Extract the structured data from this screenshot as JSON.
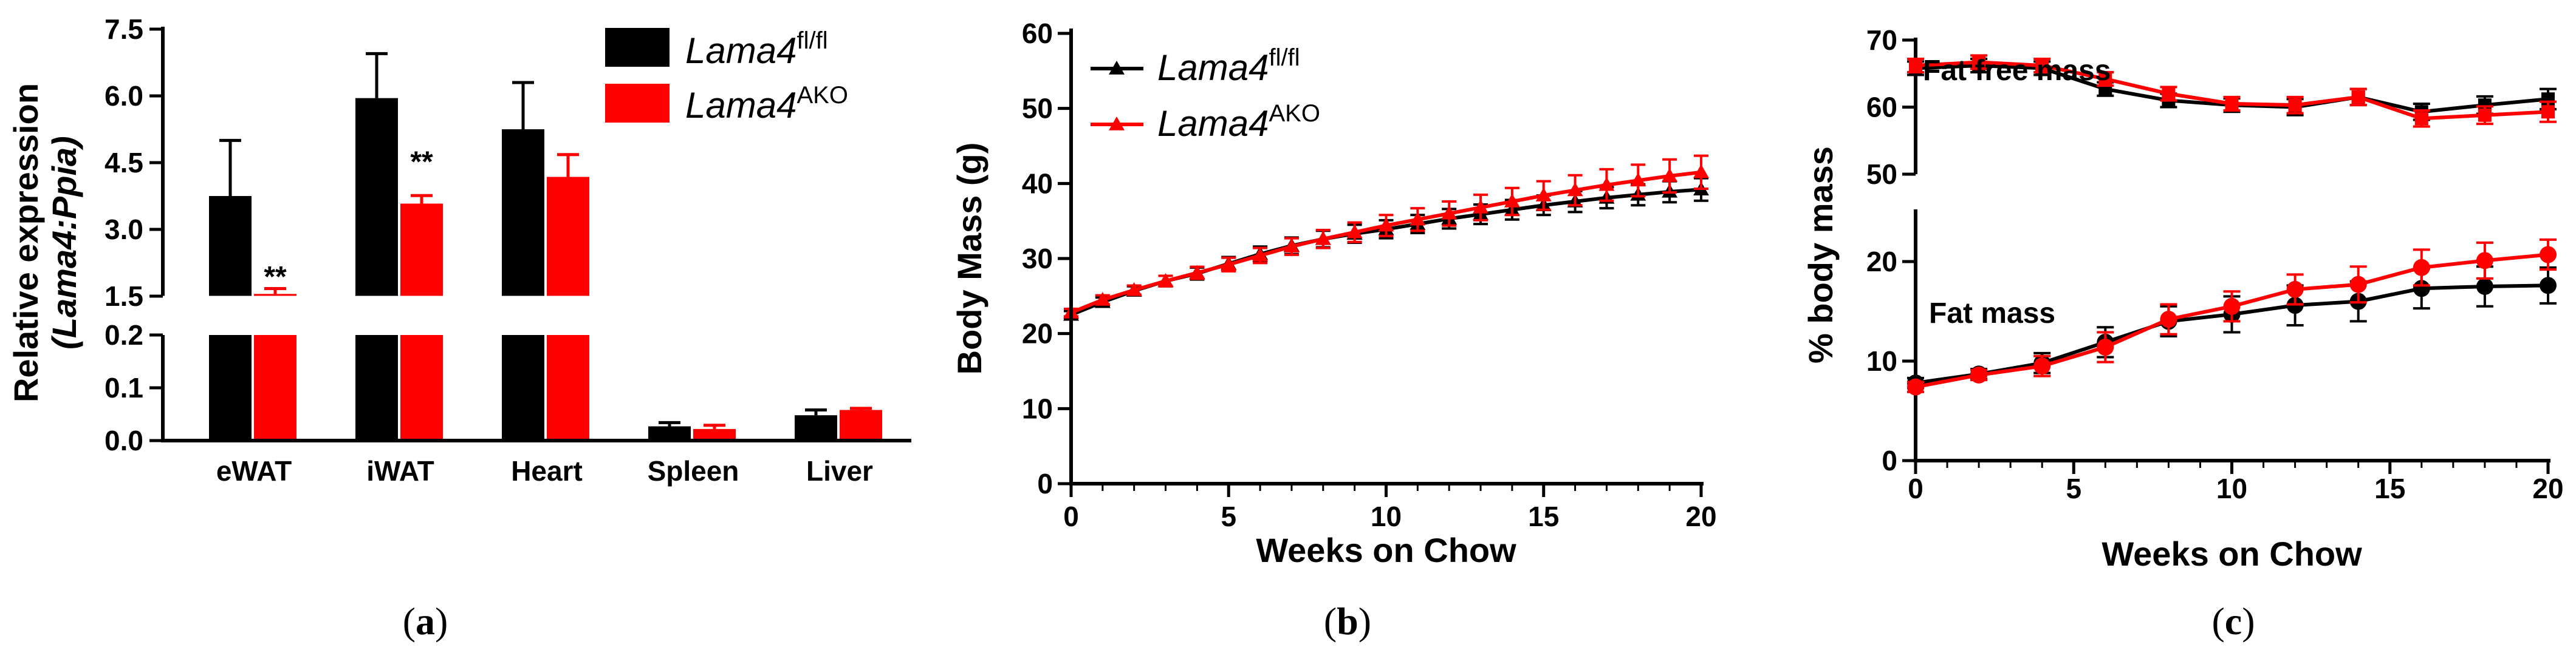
{
  "colors": {
    "black": "#000000",
    "red": "#ff0000"
  },
  "legend": {
    "ctrl": {
      "base": "Lama4",
      "sup": "fl/fl"
    },
    "ako": {
      "base": "Lama4",
      "sup": "AKO"
    }
  },
  "chart_data": [
    {
      "type": "bar",
      "panel_label": "a",
      "caption": {
        "open": "(",
        "label": "a",
        "close": ")"
      },
      "ylabel_line1": "Relative expression",
      "ylabel_line2": "(Lama4:Ppia)",
      "broken_axis": true,
      "y_segments": [
        {
          "ylim": [
            1.5,
            7.5
          ],
          "ticks": [
            "1.5",
            "3.0",
            "4.5",
            "6.0",
            "7.5"
          ]
        },
        {
          "ylim": [
            0,
            0.2
          ],
          "ticks": [
            "0.0",
            "0.1",
            "0.2"
          ]
        }
      ],
      "categories": [
        "eWAT",
        "iWAT",
        "Heart",
        "Spleen",
        "Liver"
      ],
      "series": [
        {
          "name": "Lama4 fl/fl",
          "color": "#000000",
          "values": [
            3.75,
            5.95,
            5.25,
            0.027,
            0.048
          ],
          "errors": [
            1.25,
            1.0,
            1.05,
            0.007,
            0.01
          ]
        },
        {
          "name": "Lama4 AKO",
          "color": "#ff0000",
          "values": [
            1.55,
            3.58,
            4.18,
            0.022,
            0.058
          ],
          "errors": [
            0.12,
            0.18,
            0.5,
            0.007,
            0.003
          ]
        }
      ],
      "annotations": [
        {
          "category": "eWAT",
          "text": "**"
        },
        {
          "category": "iWAT",
          "text": "**"
        }
      ]
    },
    {
      "type": "line",
      "panel_label": "b",
      "caption": {
        "open": "(",
        "label": "b",
        "close": ")"
      },
      "title": "",
      "xlabel": "Weeks on Chow",
      "ylabel": "Body Mass (g)",
      "xlim": [
        0,
        20
      ],
      "ylim": [
        0,
        60
      ],
      "xticks": [
        "0",
        "5",
        "10",
        "15",
        "20"
      ],
      "yticks": [
        "0",
        "10",
        "20",
        "30",
        "40",
        "50",
        "60"
      ],
      "x": [
        0,
        1,
        2,
        3,
        4,
        5,
        6,
        7,
        8,
        9,
        10,
        11,
        12,
        13,
        14,
        15,
        16,
        17,
        18,
        19,
        20
      ],
      "series": [
        {
          "name": "Lama4 fl/fl",
          "color": "#000000",
          "marker": "triangle",
          "values": [
            22.5,
            24.2,
            25.7,
            27.0,
            28.0,
            29.3,
            30.6,
            31.7,
            32.6,
            33.3,
            33.9,
            34.6,
            35.3,
            35.9,
            36.5,
            37.1,
            37.6,
            38.1,
            38.5,
            38.9,
            39.2
          ],
          "errors": [
            0.5,
            0.6,
            0.6,
            0.7,
            0.8,
            0.9,
            1.0,
            1.1,
            1.1,
            1.2,
            1.2,
            1.2,
            1.3,
            1.3,
            1.3,
            1.3,
            1.4,
            1.4,
            1.4,
            1.4,
            1.5
          ]
        },
        {
          "name": "Lama4 AKO",
          "color": "#ff0000",
          "marker": "triangle",
          "values": [
            22.8,
            24.5,
            25.8,
            27.0,
            28.1,
            29.2,
            30.4,
            31.6,
            32.6,
            33.5,
            34.4,
            35.2,
            36.0,
            36.8,
            37.6,
            38.4,
            39.1,
            39.8,
            40.4,
            41.0,
            41.5
          ],
          "errors": [
            0.5,
            0.6,
            0.6,
            0.7,
            0.8,
            0.9,
            1.0,
            1.1,
            1.2,
            1.3,
            1.4,
            1.5,
            1.6,
            1.7,
            1.8,
            1.9,
            2.0,
            2.1,
            2.1,
            2.2,
            2.2
          ]
        }
      ]
    },
    {
      "type": "line",
      "panel_label": "c",
      "caption": {
        "open": "(",
        "label": "c",
        "close": ")"
      },
      "xlabel": "Weeks on Chow",
      "ylabel": "% body mass",
      "xlim": [
        0,
        20
      ],
      "xticks": [
        "0",
        "5",
        "10",
        "15",
        "20"
      ],
      "x": [
        0,
        2,
        4,
        6,
        8,
        10,
        12,
        14,
        16,
        18,
        20
      ],
      "subplots": [
        {
          "label": "Fat free mass",
          "ylim": [
            50,
            70
          ],
          "yticks": [
            "50",
            "60",
            "70"
          ],
          "series": [
            {
              "name": "Lama4 fl/fl",
              "color": "#000000",
              "marker": "square",
              "values": [
                65.8,
                66.2,
                65.8,
                62.7,
                61.0,
                60.3,
                60.0,
                61.5,
                59.3,
                60.3,
                61.2
              ],
              "errors": [
                1.0,
                1.0,
                1.0,
                1.0,
                1.0,
                1.0,
                1.2,
                1.2,
                1.2,
                1.3,
                1.5
              ]
            },
            {
              "name": "Lama4 AKO",
              "color": "#ff0000",
              "marker": "square",
              "values": [
                66.2,
                66.7,
                66.2,
                64.2,
                62.0,
                60.5,
                60.3,
                61.5,
                58.3,
                58.8,
                59.3
              ],
              "errors": [
                1.0,
                1.0,
                1.0,
                1.0,
                1.0,
                1.0,
                1.2,
                1.2,
                1.2,
                1.3,
                1.5
              ]
            }
          ]
        },
        {
          "label": "Fat mass",
          "ylim": [
            0,
            25
          ],
          "yticks": [
            "0",
            "10",
            "20"
          ],
          "series": [
            {
              "name": "Lama4 fl/fl",
              "color": "#000000",
              "marker": "circle",
              "values": [
                7.8,
                8.7,
                9.8,
                11.9,
                14.0,
                14.7,
                15.6,
                16.0,
                17.3,
                17.5,
                17.6
              ],
              "errors": [
                0.5,
                0.5,
                1.0,
                1.5,
                1.5,
                1.8,
                2.0,
                2.0,
                2.0,
                2.0,
                1.8
              ]
            },
            {
              "name": "Lama4 AKO",
              "color": "#ff0000",
              "marker": "circle",
              "values": [
                7.4,
                8.6,
                9.5,
                11.4,
                14.2,
                15.5,
                17.2,
                17.7,
                19.4,
                20.1,
                20.7
              ],
              "errors": [
                0.5,
                0.5,
                1.0,
                1.5,
                1.5,
                1.5,
                1.5,
                1.8,
                1.8,
                1.8,
                1.5
              ]
            }
          ]
        }
      ]
    }
  ]
}
